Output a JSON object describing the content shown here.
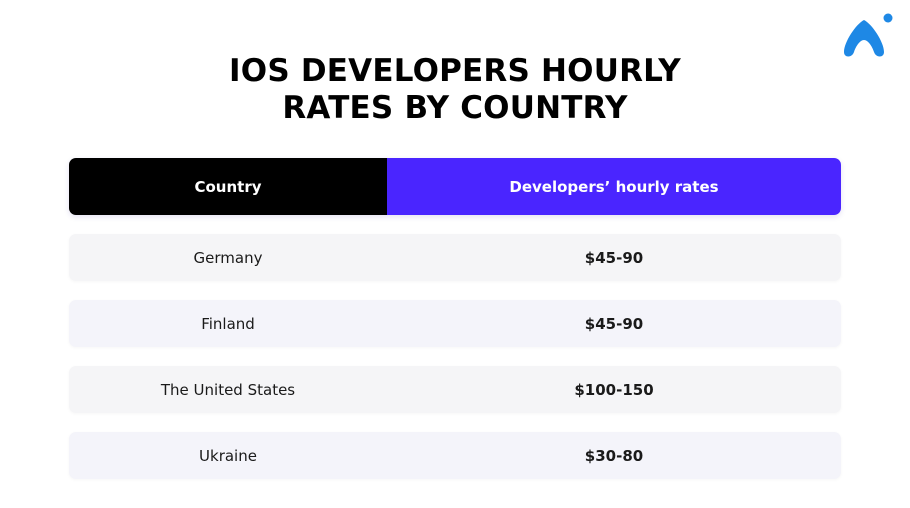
{
  "title": {
    "line1": "IOS DEVELOPERS HOURLY",
    "line2": "RATES BY COUNTRY"
  },
  "brand": {
    "logo_icon": "brand-logo-icon",
    "accent": "#1e88e5"
  },
  "table": {
    "headers": {
      "country": "Country",
      "rate": "Developers’ hourly rates"
    },
    "header_colors": {
      "country_bg": "#000000",
      "rate_bg": "#4a25ff"
    },
    "rows": [
      {
        "country": "Germany",
        "rate": "$45-90"
      },
      {
        "country": "Finland",
        "rate": "$45-90"
      },
      {
        "country": "The United States",
        "rate": "$100-150"
      },
      {
        "country": "Ukraine",
        "rate": "$30-80"
      }
    ]
  }
}
